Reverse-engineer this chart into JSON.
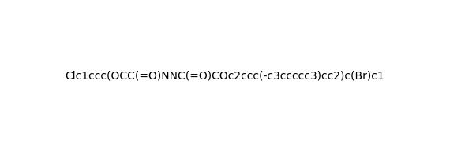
{
  "smiles": "ClC1=CC(=C(OCC(=O)NN C(=O)COc2ccc(-c3ccccc3)cc2)C=C1)Br",
  "smiles_correct": "Clc1ccc(OCC(=O)NNC(=O)COc2ccc(-c3ccccc3)cc2)c(Br)c1",
  "title": "",
  "background_color": "#ffffff",
  "line_color": "#1a1a6e",
  "figsize": [
    5.7,
    1.92
  ],
  "dpi": 100
}
